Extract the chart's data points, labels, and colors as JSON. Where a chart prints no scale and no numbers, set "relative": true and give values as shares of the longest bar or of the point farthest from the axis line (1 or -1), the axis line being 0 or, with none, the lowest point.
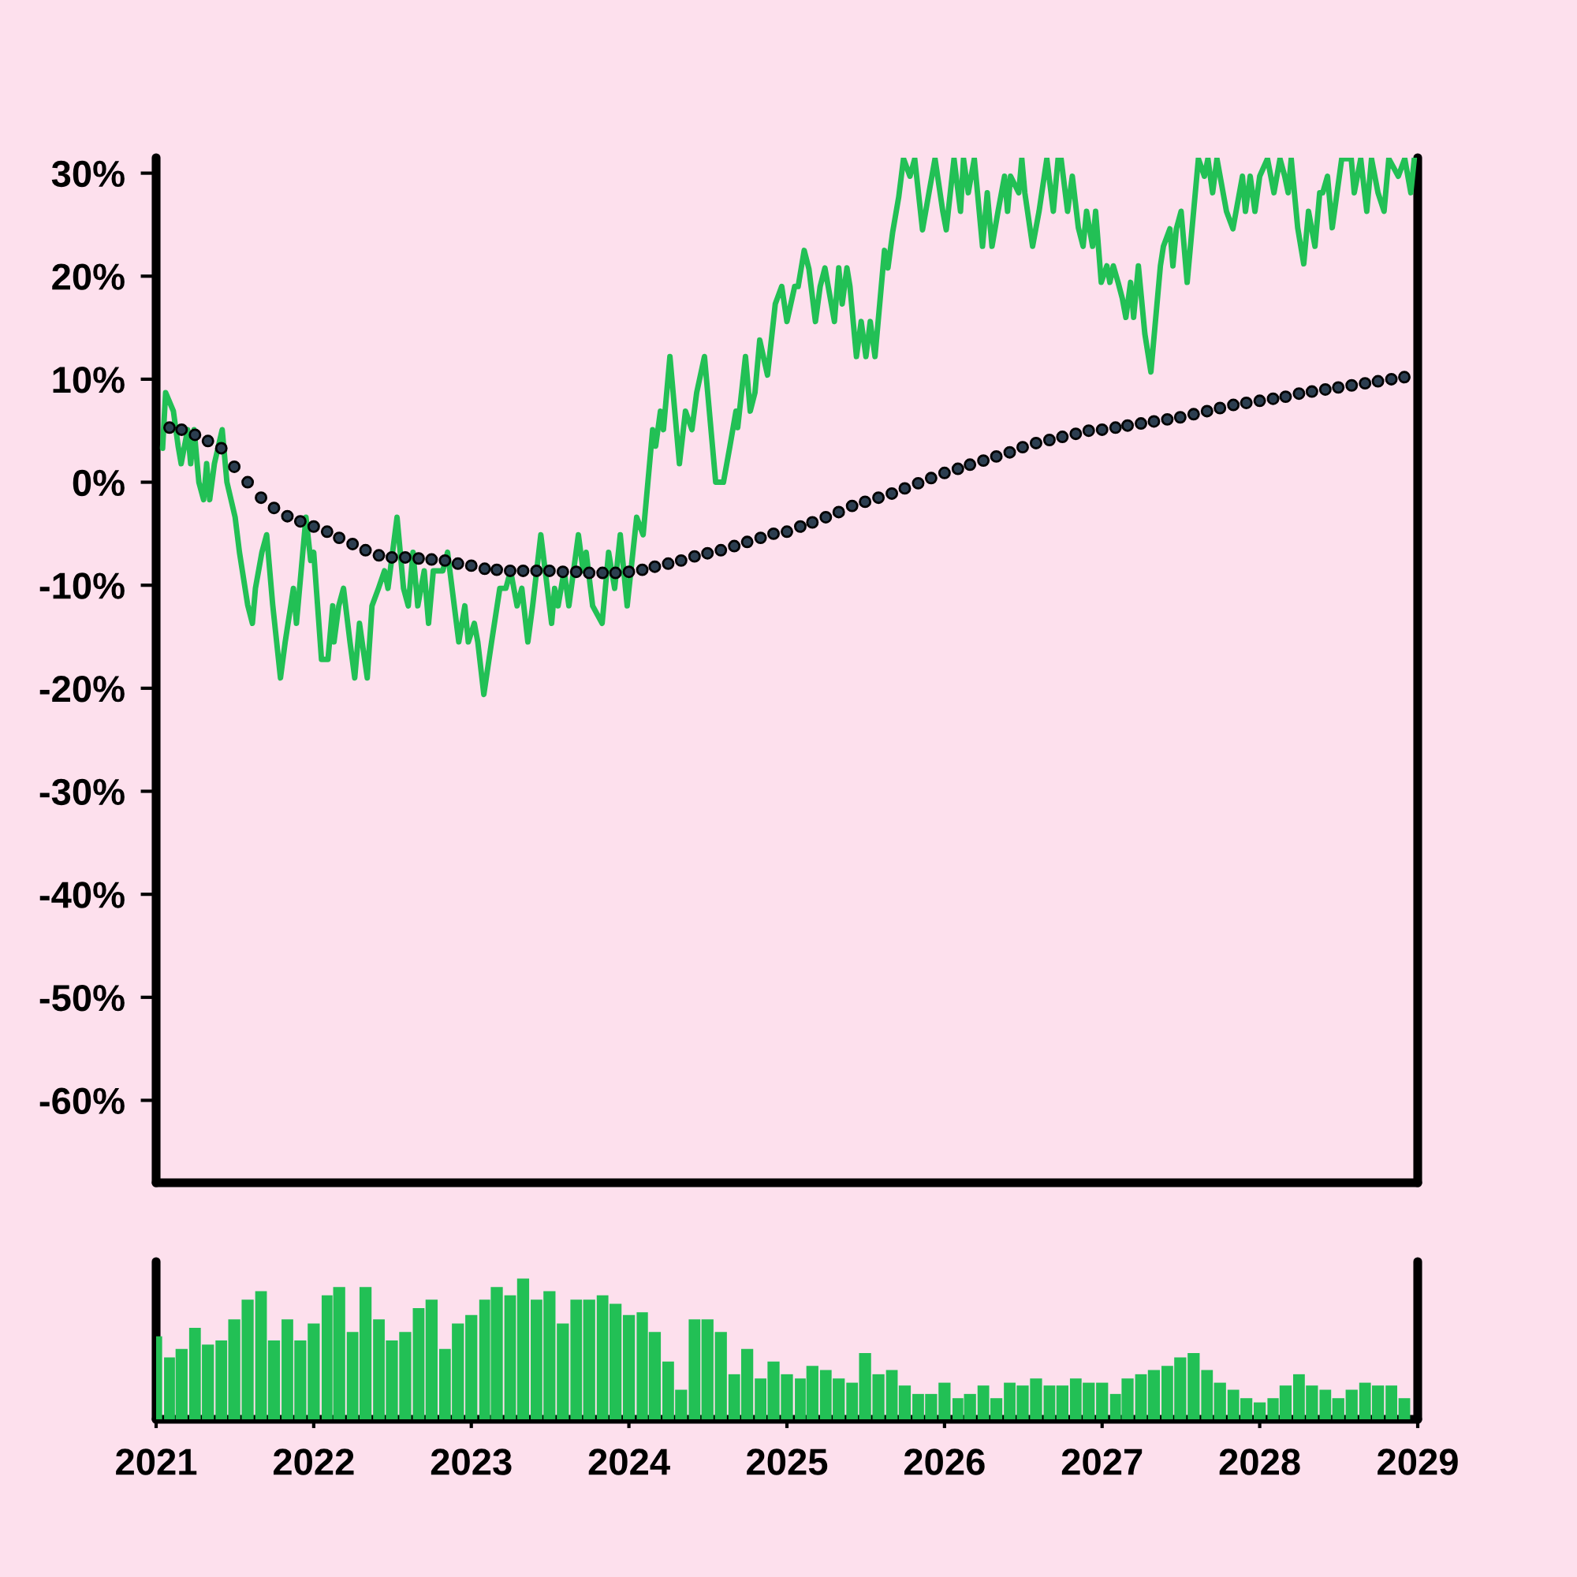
{
  "chart_data": [
    {
      "type": "line",
      "series": [
        {
          "type": "line",
          "color": "#22c055",
          "x": [
            "2021-01-16",
            "2021-01-23",
            "2021-02-10",
            "2021-02-21",
            "2021-02-28",
            "2021-03-15",
            "2021-03-22",
            "2021-03-30",
            "2021-04-10",
            "2021-04-21",
            "2021-04-28",
            "2021-05-05",
            "2021-05-16",
            "2021-06-03",
            "2021-06-14",
            "2021-07-03",
            "2021-07-13",
            "2021-08-01",
            "2021-08-12",
            "2021-08-19",
            "2021-09-03",
            "2021-09-14",
            "2021-09-28",
            "2021-10-16",
            "2021-10-27",
            "2021-11-15",
            "2021-11-22",
            "2021-12-14",
            "2021-12-25",
            "2022-01-01",
            "2022-01-19",
            "2022-02-03",
            "2022-02-14",
            "2022-02-17",
            "2022-02-28",
            "2022-03-11",
            "2022-03-26",
            "2022-04-06",
            "2022-04-17",
            "2022-05-05",
            "2022-05-16",
            "2022-05-31",
            "2022-06-14",
            "2022-06-22",
            "2022-07-13",
            "2022-07-28",
            "2022-08-08",
            "2022-08-19",
            "2022-08-30",
            "2022-09-14",
            "2022-09-24",
            "2022-10-05",
            "2022-10-27",
            "2022-11-07",
            "2022-12-03",
            "2022-12-17",
            "2022-12-25",
            "2023-01-08",
            "2023-01-16",
            "2023-01-30",
            "2023-02-17",
            "2023-03-08",
            "2023-03-22",
            "2023-04-02",
            "2023-04-17",
            "2023-04-28",
            "2023-05-12",
            "2023-05-23",
            "2023-06-11",
            "2023-07-06",
            "2023-07-13",
            "2023-07-21",
            "2023-08-04",
            "2023-08-15",
            "2023-09-06",
            "2023-09-17",
            "2023-09-24",
            "2023-10-09",
            "2023-10-31",
            "2023-11-15",
            "2023-11-29",
            "2023-12-12",
            "2023-12-28",
            "2024-01-19",
            "2024-02-03",
            "2024-02-25",
            "2024-03-03",
            "2024-03-14",
            "2024-03-21",
            "2024-04-05",
            "2024-04-27",
            "2024-05-11",
            "2024-05-26",
            "2024-06-06",
            "2024-06-24",
            "2024-07-20",
            "2024-08-07",
            "2024-08-22",
            "2024-09-05",
            "2024-09-09",
            "2024-09-27",
            "2024-10-08",
            "2024-10-19",
            "2024-10-30",
            "2024-11-17",
            "2024-12-05",
            "2024-12-20",
            "2025-01-01",
            "2025-01-19",
            "2025-01-27",
            "2025-02-10",
            "2025-02-21",
            "2025-03-08",
            "2025-03-19",
            "2025-03-30",
            "2025-04-21",
            "2025-05-01",
            "2025-05-09",
            "2025-05-20",
            "2025-05-27",
            "2025-06-11",
            "2025-06-22",
            "2025-07-03",
            "2025-07-13",
            "2025-07-24",
            "2025-08-15",
            "2025-08-23",
            "2025-09-03",
            "2025-09-17",
            "2025-09-28",
            "2025-10-13",
            "2025-10-24",
            "2025-11-11",
            "2025-11-26",
            "2025-12-10",
            "2025-12-28",
            "2026-01-05",
            "2026-01-23",
            "2026-02-07",
            "2026-02-14",
            "2026-02-25",
            "2026-03-11",
            "2026-03-30",
            "2026-04-10",
            "2026-04-21",
            "2026-05-05",
            "2026-05-20",
            "2026-05-27",
            "2026-06-03",
            "2026-06-22",
            "2026-06-29",
            "2026-07-06",
            "2026-07-24",
            "2026-08-08",
            "2026-08-26",
            "2026-09-10",
            "2026-09-21",
            "2026-09-28",
            "2026-10-13",
            "2026-10-24",
            "2026-11-07",
            "2026-11-18",
            "2026-11-26",
            "2026-12-10",
            "2026-12-17",
            "2026-12-30",
            "2027-01-12",
            "2027-01-19",
            "2027-01-27",
            "2027-02-07",
            "2027-02-17",
            "2027-02-25",
            "2027-03-08",
            "2027-03-15",
            "2027-03-26",
            "2027-04-10",
            "2027-04-24",
            "2027-05-16",
            "2027-05-23",
            "2027-06-07",
            "2027-06-14",
            "2027-06-22",
            "2027-07-03",
            "2027-07-17",
            "2027-08-12",
            "2027-08-26",
            "2027-09-03",
            "2027-09-14",
            "2027-09-24",
            "2027-10-16",
            "2027-10-31",
            "2027-11-22",
            "2027-11-29",
            "2027-12-10",
            "2027-12-21",
            "2028-01-01",
            "2028-01-19",
            "2028-02-03",
            "2028-02-17",
            "2028-02-28",
            "2028-03-07",
            "2028-03-14",
            "2028-03-29",
            "2028-04-12",
            "2028-04-23",
            "2028-05-08",
            "2028-05-19",
            "2028-05-26",
            "2028-06-06",
            "2028-06-17",
            "2028-07-09",
            "2028-07-31",
            "2028-08-07",
            "2028-08-22",
            "2028-09-05",
            "2028-09-16",
            "2028-10-01",
            "2028-10-15",
            "2028-10-26",
            "2028-11-17",
            "2028-12-02",
            "2028-12-16",
            "2028-12-24"
          ],
          "values": [
            3.3,
            8.7,
            6.9,
            3.5,
            1.8,
            5.1,
            1.8,
            5.1,
            0,
            -1.7,
            1.8,
            -1.7,
            1.8,
            5.1,
            0,
            -3.4,
            -6.8,
            -11.9,
            -13.7,
            -10.3,
            -6.8,
            -5.1,
            -11.9,
            -19.0,
            -15.5,
            -10.3,
            -13.7,
            -3.4,
            -7.6,
            -6.8,
            -17.2,
            -17.2,
            -12.0,
            -15.5,
            -12.0,
            -10.3,
            -15.5,
            -19.0,
            -13.7,
            -19.0,
            -12.0,
            -10.3,
            -8.6,
            -10.3,
            -3.4,
            -10.3,
            -12.0,
            -6.8,
            -12.0,
            -8.6,
            -13.7,
            -8.6,
            -8.6,
            -6.8,
            -15.5,
            -12.0,
            -15.5,
            -13.7,
            -15.5,
            -20.6,
            -15.5,
            -10.3,
            -10.3,
            -8.6,
            -12.0,
            -10.3,
            -15.5,
            -12.0,
            -5.1,
            -13.7,
            -10.3,
            -12.0,
            -8.6,
            -12.0,
            -5.1,
            -8.6,
            -6.8,
            -12.0,
            -13.7,
            -6.8,
            -10.3,
            -5.1,
            -12.0,
            -3.4,
            -5.1,
            5.1,
            3.5,
            6.9,
            5.1,
            12.2,
            1.8,
            6.9,
            5.1,
            8.7,
            12.2,
            0,
            0,
            3.5,
            6.9,
            5.3,
            12.2,
            6.9,
            8.7,
            13.8,
            10.4,
            17.3,
            19.0,
            15.6,
            19.0,
            19.0,
            22.5,
            20.7,
            15.6,
            19.0,
            20.8,
            15.6,
            20.8,
            17.3,
            20.8,
            19.0,
            12.2,
            15.6,
            12.2,
            15.6,
            12.2,
            22.5,
            20.8,
            24.3,
            27.7,
            31.4,
            29.7,
            31.4,
            24.5,
            28.1,
            31.4,
            26.3,
            24.5,
            31.4,
            26.3,
            31.4,
            28.1,
            31.4,
            22.9,
            28.1,
            22.9,
            26.3,
            29.7,
            26.3,
            29.7,
            28.1,
            31.4,
            28.1,
            22.9,
            26.3,
            31.4,
            26.3,
            31.4,
            31.4,
            26.3,
            29.7,
            24.7,
            22.9,
            26.3,
            22.9,
            26.3,
            19.4,
            21.0,
            19.4,
            21.0,
            19.4,
            17.8,
            16.0,
            19.4,
            16.0,
            21.0,
            14.4,
            10.7,
            21.0,
            22.9,
            24.6,
            21.0,
            24.6,
            26.3,
            19.4,
            31.4,
            29.7,
            31.4,
            28.1,
            31.4,
            26.3,
            24.6,
            29.7,
            26.3,
            29.7,
            26.3,
            29.7,
            31.4,
            28.1,
            31.4,
            29.7,
            28.1,
            31.4,
            24.7,
            21.2,
            26.3,
            22.9,
            28.1,
            28.1,
            29.7,
            24.7,
            31.4,
            31.4,
            28.1,
            31.4,
            26.3,
            31.4,
            28.1,
            26.3,
            31.4,
            29.7,
            31.4,
            28.1,
            31.4
          ]
        },
        {
          "type": "scatter",
          "marker": "circle",
          "color": "#2c3e50",
          "x": [
            "2021-02",
            "2021-03",
            "2021-04",
            "2021-05",
            "2021-06",
            "2021-07",
            "2021-08",
            "2021-09",
            "2021-10",
            "2021-11",
            "2021-12",
            "2022-01",
            "2022-02",
            "2022-03",
            "2022-04",
            "2022-05",
            "2022-06",
            "2022-07",
            "2022-08",
            "2022-09",
            "2022-10",
            "2022-11",
            "2022-12",
            "2023-01",
            "2023-02",
            "2023-03",
            "2023-04",
            "2023-05",
            "2023-06",
            "2023-07",
            "2023-08",
            "2023-09",
            "2023-10",
            "2023-11",
            "2023-12",
            "2024-01",
            "2024-02",
            "2024-03",
            "2024-04",
            "2024-05",
            "2024-06",
            "2024-07",
            "2024-08",
            "2024-09",
            "2024-10",
            "2024-11",
            "2024-12",
            "2025-01",
            "2025-02",
            "2025-03",
            "2025-04",
            "2025-05",
            "2025-06",
            "2025-07",
            "2025-08",
            "2025-09",
            "2025-10",
            "2025-11",
            "2025-12",
            "2026-01",
            "2026-02",
            "2026-03",
            "2026-04",
            "2026-05",
            "2026-06",
            "2026-07",
            "2026-08",
            "2026-09",
            "2026-10",
            "2026-11",
            "2026-12",
            "2027-01",
            "2027-02",
            "2027-03",
            "2027-04",
            "2027-05",
            "2027-06",
            "2027-07",
            "2027-08",
            "2027-09",
            "2027-10",
            "2027-11",
            "2027-12",
            "2028-01",
            "2028-02",
            "2028-03",
            "2028-04",
            "2028-05",
            "2028-06",
            "2028-07",
            "2028-08",
            "2028-09",
            "2028-10",
            "2028-11",
            "2028-12"
          ],
          "values": [
            5.3,
            5.1,
            4.6,
            4.0,
            3.3,
            1.5,
            0.0,
            -1.5,
            -2.5,
            -3.3,
            -3.8,
            -4.3,
            -4.8,
            -5.4,
            -6.0,
            -6.6,
            -7.1,
            -7.3,
            -7.3,
            -7.4,
            -7.5,
            -7.6,
            -7.9,
            -8.1,
            -8.4,
            -8.5,
            -8.6,
            -8.6,
            -8.6,
            -8.6,
            -8.7,
            -8.7,
            -8.8,
            -8.8,
            -8.8,
            -8.7,
            -8.5,
            -8.2,
            -7.9,
            -7.6,
            -7.2,
            -6.9,
            -6.6,
            -6.2,
            -5.8,
            -5.4,
            -5.0,
            -4.8,
            -4.3,
            -3.9,
            -3.4,
            -2.9,
            -2.3,
            -1.9,
            -1.5,
            -1.1,
            -0.6,
            -0.1,
            0.4,
            0.9,
            1.3,
            1.7,
            2.1,
            2.5,
            2.9,
            3.4,
            3.8,
            4.1,
            4.4,
            4.7,
            5.0,
            5.1,
            5.3,
            5.5,
            5.7,
            5.9,
            6.1,
            6.3,
            6.6,
            6.9,
            7.2,
            7.5,
            7.7,
            7.9,
            8.1,
            8.3,
            8.6,
            8.8,
            9.0,
            9.2,
            9.4,
            9.6,
            9.8,
            10.0,
            10.2
          ]
        }
      ],
      "xlim": [
        "2021-01-01",
        "2029-01-01"
      ],
      "ylim": [
        -68,
        31.5
      ],
      "yticks": [
        {
          "value": 30,
          "label": "30%"
        },
        {
          "value": 20,
          "label": "20%"
        },
        {
          "value": 10,
          "label": "10%"
        },
        {
          "value": 0,
          "label": "0%"
        },
        {
          "value": -10,
          "label": "-10%"
        },
        {
          "value": -20,
          "label": "-20%"
        },
        {
          "value": -30,
          "label": "-30%"
        },
        {
          "value": -40,
          "label": "-40%"
        },
        {
          "value": -50,
          "label": "-50%"
        },
        {
          "value": -60,
          "label": "-60%"
        }
      ],
      "tick_labels": "y",
      "grid": false,
      "legend": false
    },
    {
      "type": "bar",
      "relative": true,
      "color": "#22c055",
      "x": [
        "2021-01",
        "2021-02",
        "2021-03",
        "2021-04",
        "2021-05",
        "2021-06",
        "2021-07",
        "2021-08",
        "2021-09",
        "2021-10",
        "2021-11",
        "2021-12",
        "2022-01",
        "2022-02",
        "2022-03",
        "2022-04",
        "2022-05",
        "2022-06",
        "2022-07",
        "2022-08",
        "2022-09",
        "2022-10",
        "2022-11",
        "2022-12",
        "2023-01",
        "2023-02",
        "2023-03",
        "2023-04",
        "2023-05",
        "2023-06",
        "2023-07",
        "2023-08",
        "2023-09",
        "2023-10",
        "2023-11",
        "2023-12",
        "2024-01",
        "2024-02",
        "2024-03",
        "2024-04",
        "2024-05",
        "2024-06",
        "2024-07",
        "2024-08",
        "2024-09",
        "2024-10",
        "2024-11",
        "2024-12",
        "2025-01",
        "2025-02",
        "2025-03",
        "2025-04",
        "2025-05",
        "2025-06",
        "2025-07",
        "2025-08",
        "2025-09",
        "2025-10",
        "2025-11",
        "2025-12",
        "2026-01",
        "2026-02",
        "2026-03",
        "2026-04",
        "2026-05",
        "2026-06",
        "2026-07",
        "2026-08",
        "2026-09",
        "2026-10",
        "2026-11",
        "2026-12",
        "2027-01",
        "2027-02",
        "2027-03",
        "2027-04",
        "2027-05",
        "2027-06",
        "2027-07",
        "2027-08",
        "2027-09",
        "2027-10",
        "2027-11",
        "2027-12",
        "2028-01",
        "2028-02",
        "2028-03",
        "2028-04",
        "2028-05",
        "2028-06",
        "2028-07",
        "2028-08",
        "2028-09",
        "2028-10",
        "2028-11",
        "2028-12"
      ],
      "values": [
        0.59,
        0.44,
        0.5,
        0.65,
        0.53,
        0.56,
        0.71,
        0.85,
        0.91,
        0.56,
        0.71,
        0.56,
        0.68,
        0.88,
        0.94,
        0.62,
        0.94,
        0.71,
        0.56,
        0.62,
        0.79,
        0.85,
        0.5,
        0.68,
        0.74,
        0.85,
        0.94,
        0.88,
        1.0,
        0.85,
        0.91,
        0.68,
        0.85,
        0.85,
        0.88,
        0.82,
        0.74,
        0.76,
        0.62,
        0.41,
        0.21,
        0.71,
        0.71,
        0.62,
        0.32,
        0.5,
        0.29,
        0.41,
        0.32,
        0.29,
        0.38,
        0.35,
        0.29,
        0.26,
        0.47,
        0.32,
        0.35,
        0.24,
        0.18,
        0.18,
        0.26,
        0.15,
        0.18,
        0.24,
        0.15,
        0.26,
        0.24,
        0.29,
        0.24,
        0.24,
        0.29,
        0.26,
        0.26,
        0.18,
        0.29,
        0.32,
        0.35,
        0.38,
        0.44,
        0.47,
        0.35,
        0.26,
        0.21,
        0.15,
        0.12,
        0.15,
        0.24,
        0.32,
        0.24,
        0.21,
        0.15,
        0.21,
        0.26,
        0.24,
        0.24,
        0.15
      ],
      "xlim": [
        "2021-01-01",
        "2029-01-01"
      ],
      "xticks": [
        {
          "value": "2021",
          "label": "2021"
        },
        {
          "value": "2022",
          "label": "2022"
        },
        {
          "value": "2023",
          "label": "2023"
        },
        {
          "value": "2024",
          "label": "2024"
        },
        {
          "value": "2025",
          "label": "2025"
        },
        {
          "value": "2026",
          "label": "2026"
        },
        {
          "value": "2027",
          "label": "2027"
        },
        {
          "value": "2028",
          "label": "2028"
        },
        {
          "value": "2029",
          "label": "2029"
        }
      ],
      "tick_labels": "x",
      "grid": false,
      "legend": false
    }
  ]
}
